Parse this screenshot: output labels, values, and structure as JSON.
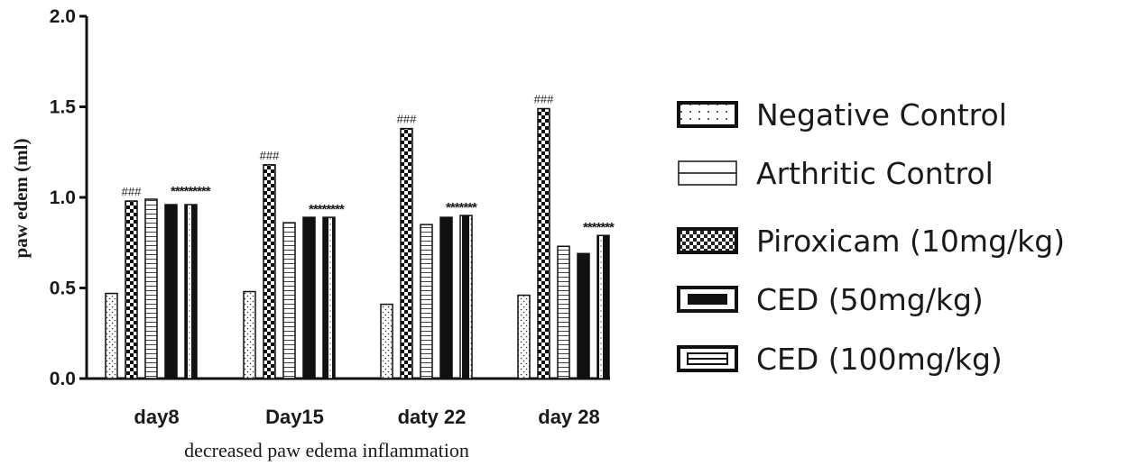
{
  "chart_data": {
    "type": "bar",
    "title": "",
    "xlabel": "decreased paw edema inflammation",
    "ylabel": "paw edem (ml)",
    "ylim": [
      0,
      2.0
    ],
    "yticks": [
      "0.0",
      "0.5",
      "1.0",
      "1.5",
      "2.0"
    ],
    "categories": [
      "day8",
      "Day15",
      "daty 22",
      "day 28"
    ],
    "series": [
      {
        "name": "Negative Control",
        "pattern": "dots",
        "values": [
          0.47,
          0.48,
          0.41,
          0.46
        ]
      },
      {
        "name": "Arthritic Control",
        "pattern": "horizontal-line",
        "values": [
          0.98,
          1.18,
          1.38,
          1.49
        ]
      },
      {
        "name": "Piroxicam (10mg/kg)",
        "pattern": "checker",
        "values": [
          0.99,
          0.86,
          0.85,
          0.73
        ]
      },
      {
        "name": "CED (50mg/kg)",
        "pattern": "solid-black",
        "values": [
          0.96,
          0.89,
          0.89,
          0.69
        ]
      },
      {
        "name": "CED (100mg/kg)",
        "pattern": "striped",
        "values": [
          0.96,
          0.89,
          0.9,
          0.79
        ]
      }
    ],
    "annotations": [
      {
        "category": "day8",
        "text": "###",
        "kind": "hash"
      },
      {
        "category": "day8",
        "text": "*********",
        "kind": "star"
      },
      {
        "category": "Day15",
        "text": "###",
        "kind": "hash"
      },
      {
        "category": "Day15",
        "text": "********",
        "kind": "star"
      },
      {
        "category": "daty 22",
        "text": "###",
        "kind": "hash"
      },
      {
        "category": "daty 22",
        "text": "*******",
        "kind": "star"
      },
      {
        "category": "day 28",
        "text": "###",
        "kind": "hash"
      },
      {
        "category": "day 28",
        "text": "*******",
        "kind": "star"
      }
    ],
    "legend_position": "right",
    "grid": false
  }
}
